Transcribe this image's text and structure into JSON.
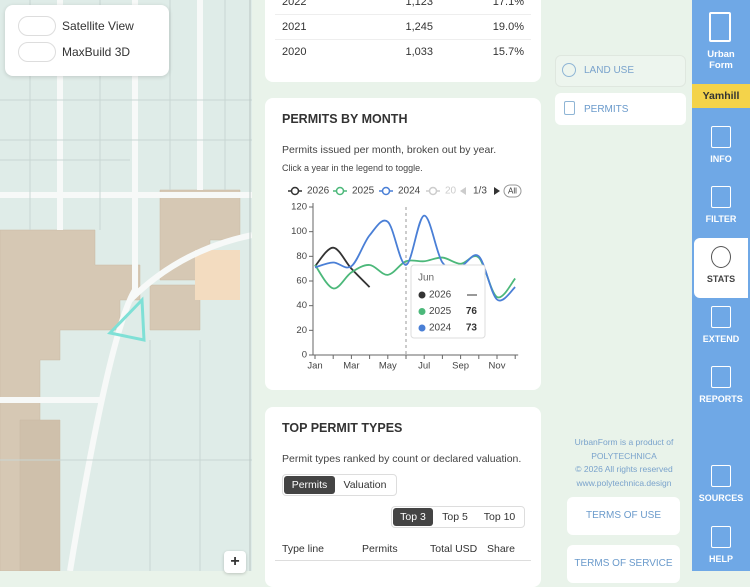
{
  "map": {
    "toggles": [
      "Satellite View",
      "MaxBuild 3D"
    ],
    "zoom": "+"
  },
  "summary_table": {
    "rows": [
      [
        "2022",
        "1,123",
        "17.1%"
      ],
      [
        "2021",
        "1,245",
        "19.0%"
      ],
      [
        "2020",
        "1,033",
        "15.7%"
      ]
    ]
  },
  "permits_card": {
    "title": "PERMITS BY MONTH",
    "description": "Permits issued per month, broken out by year.",
    "hint": "Click a year in the legend to toggle.",
    "inactive_legend": "2023",
    "pager": "1/3",
    "all_button": "All"
  },
  "chart_data": {
    "type": "line",
    "categories": [
      "Jan",
      null,
      "Mar",
      null,
      "May",
      null,
      "Jul",
      null,
      "Sep",
      null,
      "Nov",
      null
    ],
    "series": [
      {
        "name": "2026",
        "color": "#333333",
        "values": [
          72,
          87,
          70,
          55,
          null,
          null,
          null,
          null,
          null,
          null,
          null,
          null
        ]
      },
      {
        "name": "2025",
        "color": "#4cb87a",
        "values": [
          73,
          54,
          67,
          73,
          65,
          76,
          76,
          79,
          74,
          79,
          47,
          62
        ]
      },
      {
        "name": "2024",
        "color": "#4a7fd6",
        "values": [
          71,
          75,
          72,
          97,
          108,
          73,
          113,
          75,
          72,
          80,
          45,
          55
        ]
      }
    ],
    "ylim": [
      0,
      120
    ],
    "yticks": [
      0,
      20,
      40,
      60,
      80,
      100,
      120
    ],
    "tooltip": {
      "title": "Jun",
      "rows": [
        {
          "name": "2026",
          "value": "—"
        },
        {
          "name": "2025",
          "value": 76
        },
        {
          "name": "2024",
          "value": 73
        }
      ]
    }
  },
  "types_card": {
    "title": "TOP PERMIT TYPES",
    "description": "Permit types ranked by count or declared valuation.",
    "tabs": [
      "Permits",
      "Valuation"
    ],
    "active_tab": 0,
    "top_options": [
      "Top 3",
      "Top 5",
      "Top 10"
    ],
    "active_top": 0,
    "columns": [
      "Type line",
      "Permits",
      "Total USD",
      "Share"
    ]
  },
  "nav": {
    "land_use": "LAND USE",
    "permits": "PERMITS"
  },
  "footer": {
    "lines": [
      "UrbanForm is a product of",
      "POLYTECHNICA",
      "© 2026 All rights reserved",
      "www.polytechnica.design"
    ],
    "links": [
      "TERMS OF USE",
      "TERMS OF SERVICE"
    ]
  },
  "sidebar": {
    "logo": [
      "Urban",
      "Form"
    ],
    "region": "Yamhill",
    "items": [
      "INFO",
      "FILTER",
      "STATS",
      "EXTEND",
      "REPORTS",
      "SOURCES",
      "HELP"
    ],
    "active": 2
  }
}
